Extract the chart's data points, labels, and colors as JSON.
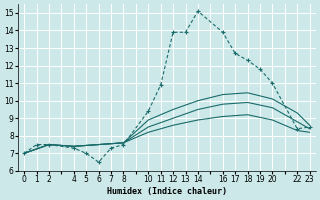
{
  "xlabel": "Humidex (Indice chaleur)",
  "bg_color": "#cce8e8",
  "grid_color": "#ffffff",
  "line_color": "#1a6b6b",
  "xlim": [
    -0.5,
    23.5
  ],
  "ylim": [
    6,
    15.5
  ],
  "yticks": [
    6,
    7,
    8,
    9,
    10,
    11,
    12,
    13,
    14,
    15
  ],
  "xtick_labels": [
    "0",
    "1",
    "2",
    "",
    "4",
    "5",
    "6",
    "7",
    "8",
    "",
    "10",
    "11",
    "12",
    "13",
    "14",
    "",
    "16",
    "17",
    "18",
    "19",
    "20",
    "",
    "22",
    "23"
  ],
  "xtick_positions": [
    0,
    1,
    2,
    3,
    4,
    5,
    6,
    7,
    8,
    9,
    10,
    11,
    12,
    13,
    14,
    15,
    16,
    17,
    18,
    19,
    20,
    21,
    22,
    23
  ],
  "line1_x": [
    0,
    1,
    2,
    4,
    5,
    6,
    7,
    8,
    10,
    11,
    12,
    13,
    14,
    16,
    17,
    18,
    19,
    20,
    22,
    23
  ],
  "line1_y": [
    7.0,
    7.5,
    7.5,
    7.3,
    7.0,
    6.5,
    7.3,
    7.5,
    9.4,
    10.9,
    13.9,
    13.9,
    15.1,
    13.9,
    12.7,
    12.3,
    11.8,
    11.0,
    8.4,
    8.5
  ],
  "line2_x": [
    0,
    2,
    4,
    8,
    10,
    12,
    14,
    16,
    18,
    20,
    22,
    23
  ],
  "line2_y": [
    7.0,
    7.5,
    7.4,
    7.6,
    8.9,
    9.5,
    10.0,
    10.35,
    10.45,
    10.1,
    9.3,
    8.6
  ],
  "line3_x": [
    0,
    2,
    4,
    8,
    10,
    12,
    14,
    16,
    18,
    20,
    22,
    23
  ],
  "line3_y": [
    7.0,
    7.5,
    7.4,
    7.6,
    8.5,
    9.0,
    9.5,
    9.8,
    9.9,
    9.6,
    8.8,
    8.4
  ],
  "line4_x": [
    0,
    2,
    4,
    8,
    10,
    12,
    14,
    16,
    18,
    20,
    22,
    23
  ],
  "line4_y": [
    7.0,
    7.5,
    7.4,
    7.6,
    8.2,
    8.6,
    8.9,
    9.1,
    9.2,
    8.9,
    8.3,
    8.2
  ]
}
